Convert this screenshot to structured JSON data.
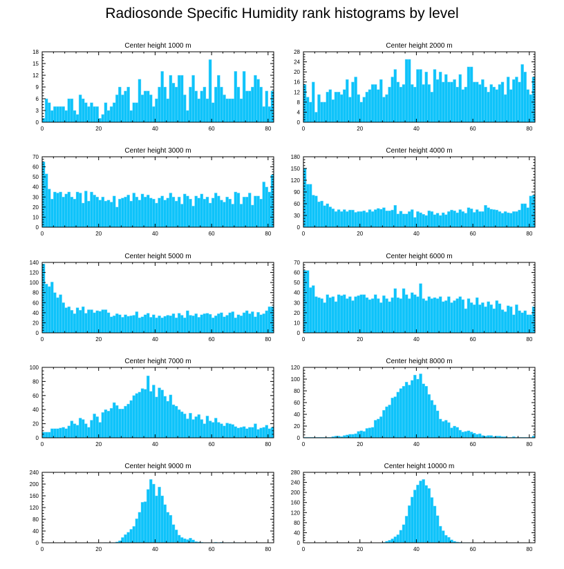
{
  "title": "Radiosonde Specific Humidity rank histograms by level",
  "colors": {
    "bar": "#0EC3FA",
    "bar_edge": "#7FDCFC",
    "axis": "#000000"
  },
  "chart_data": [
    {
      "type": "bar",
      "title": "Center height 1000 m",
      "xlim": [
        0,
        82
      ],
      "ylim": [
        0,
        18
      ],
      "xticks": [
        0,
        20,
        40,
        60,
        80
      ],
      "yticks": [
        0,
        3,
        6,
        9,
        12,
        15,
        18
      ],
      "x_start": 0,
      "values": [
        1,
        6,
        5,
        3,
        4,
        4,
        4,
        4,
        3,
        6,
        6,
        3,
        2,
        7,
        6,
        5,
        4,
        5,
        4,
        4,
        1,
        2,
        5,
        3,
        4,
        5,
        7,
        9,
        7,
        8,
        9,
        3,
        5,
        5,
        11,
        7,
        8,
        8,
        7,
        4,
        6,
        9,
        13,
        9,
        6,
        12,
        10,
        9,
        12,
        12,
        7,
        3,
        9,
        12,
        8,
        6,
        8,
        9,
        6,
        16,
        5,
        9,
        12,
        9,
        7,
        6,
        6,
        6,
        13,
        9,
        6,
        13,
        8,
        8,
        9,
        12,
        11,
        9,
        4,
        8,
        4,
        8
      ]
    },
    {
      "type": "bar",
      "title": "Center height 2000 m",
      "xlim": [
        0,
        82
      ],
      "ylim": [
        0,
        28
      ],
      "xticks": [
        0,
        20,
        40,
        60,
        80
      ],
      "yticks": [
        0,
        4,
        8,
        12,
        16,
        20,
        24,
        28
      ],
      "x_start": 0,
      "values": [
        15,
        10,
        8,
        16,
        4,
        11,
        8,
        8,
        12,
        13,
        9,
        12,
        12,
        11,
        13,
        17,
        10,
        16,
        18,
        11,
        8,
        10,
        12,
        13,
        15,
        15,
        13,
        17,
        10,
        11,
        14,
        18,
        21,
        16,
        14,
        15,
        25,
        25,
        15,
        14,
        21,
        21,
        15,
        20,
        15,
        12,
        21,
        17,
        20,
        16,
        19,
        16,
        16,
        17,
        14,
        19,
        13,
        14,
        22,
        22,
        16,
        16,
        15,
        17,
        14,
        12,
        15,
        14,
        13,
        15,
        16,
        11,
        18,
        13,
        17,
        18,
        16,
        23,
        20,
        13,
        11,
        18
      ]
    },
    {
      "type": "bar",
      "title": "Center height 3000 m",
      "xlim": [
        0,
        82
      ],
      "ylim": [
        0,
        70
      ],
      "xticks": [
        0,
        20,
        40,
        60,
        80
      ],
      "yticks": [
        0,
        10,
        20,
        30,
        40,
        50,
        60,
        70
      ],
      "x_start": 0,
      "values": [
        65,
        53,
        38,
        28,
        35,
        34,
        35,
        30,
        33,
        35,
        30,
        28,
        35,
        34,
        24,
        36,
        26,
        35,
        32,
        30,
        27,
        30,
        26,
        27,
        25,
        31,
        20,
        28,
        29,
        30,
        32,
        26,
        34,
        30,
        27,
        33,
        30,
        32,
        29,
        28,
        24,
        29,
        31,
        27,
        29,
        34,
        30,
        26,
        30,
        23,
        33,
        31,
        28,
        21,
        31,
        29,
        33,
        28,
        30,
        24,
        29,
        34,
        31,
        27,
        25,
        30,
        28,
        23,
        35,
        34,
        23,
        30,
        30,
        34,
        22,
        31,
        31,
        28,
        45,
        40,
        35,
        52
      ]
    },
    {
      "type": "bar",
      "title": "Center height 4000 m",
      "xlim": [
        0,
        82
      ],
      "ylim": [
        0,
        180
      ],
      "xticks": [
        0,
        20,
        40,
        60,
        80
      ],
      "yticks": [
        0,
        30,
        60,
        90,
        120,
        150,
        180
      ],
      "x_start": 0,
      "values": [
        151,
        110,
        110,
        82,
        80,
        65,
        67,
        55,
        60,
        52,
        47,
        40,
        45,
        40,
        45,
        40,
        44,
        44,
        38,
        40,
        40,
        42,
        38,
        45,
        40,
        45,
        48,
        46,
        50,
        42,
        42,
        44,
        56,
        34,
        41,
        34,
        34,
        40,
        45,
        25,
        40,
        37,
        33,
        30,
        42,
        40,
        32,
        36,
        30,
        37,
        32,
        40,
        44,
        42,
        37,
        45,
        40,
        36,
        50,
        47,
        38,
        45,
        40,
        40,
        56,
        50,
        46,
        45,
        44,
        40,
        36,
        40,
        37,
        36,
        40,
        40,
        44,
        60,
        60,
        50,
        80,
        82
      ]
    },
    {
      "type": "bar",
      "title": "Center height 5000 m",
      "xlim": [
        0,
        82
      ],
      "ylim": [
        0,
        140
      ],
      "xticks": [
        0,
        20,
        40,
        60,
        80
      ],
      "yticks": [
        0,
        20,
        40,
        60,
        80,
        100,
        120,
        140
      ],
      "x_start": 0,
      "values": [
        137,
        97,
        92,
        101,
        80,
        70,
        76,
        60,
        50,
        52,
        45,
        38,
        50,
        45,
        52,
        39,
        46,
        46,
        40,
        44,
        43,
        46,
        46,
        40,
        32,
        34,
        38,
        36,
        31,
        36,
        33,
        34,
        35,
        42,
        30,
        32,
        36,
        39,
        31,
        36,
        30,
        34,
        30,
        33,
        35,
        34,
        38,
        30,
        39,
        35,
        30,
        44,
        35,
        34,
        38,
        31,
        36,
        38,
        39,
        37,
        30,
        34,
        38,
        40,
        32,
        35,
        40,
        42,
        30,
        36,
        34,
        40,
        44,
        38,
        42,
        32,
        41,
        36,
        38,
        44,
        52,
        52
      ]
    },
    {
      "type": "bar",
      "title": "Center height 6000 m",
      "xlim": [
        0,
        82
      ],
      "ylim": [
        0,
        70
      ],
      "xticks": [
        0,
        20,
        40,
        60,
        80
      ],
      "yticks": [
        0,
        10,
        20,
        30,
        40,
        50,
        60,
        70
      ],
      "x_start": 0,
      "values": [
        62,
        62,
        45,
        47,
        36,
        35,
        34,
        30,
        38,
        35,
        36,
        31,
        38,
        37,
        38,
        34,
        36,
        32,
        36,
        37,
        38,
        38,
        35,
        33,
        34,
        38,
        34,
        30,
        37,
        34,
        31,
        35,
        44,
        35,
        34,
        44,
        38,
        34,
        40,
        38,
        36,
        49,
        34,
        32,
        36,
        34,
        35,
        34,
        36,
        31,
        32,
        36,
        30,
        32,
        34,
        36,
        33,
        24,
        34,
        30,
        28,
        35,
        28,
        30,
        26,
        31,
        28,
        24,
        32,
        29,
        23,
        21,
        27,
        26,
        18,
        28,
        22,
        20,
        22,
        18,
        18,
        26
      ]
    },
    {
      "type": "bar",
      "title": "Center height 7000 m",
      "xlim": [
        0,
        82
      ],
      "ylim": [
        0,
        100
      ],
      "xticks": [
        0,
        20,
        40,
        60,
        80
      ],
      "yticks": [
        0,
        20,
        40,
        60,
        80,
        100
      ],
      "x_start": 0,
      "values": [
        8,
        8,
        8,
        13,
        13,
        13,
        14,
        15,
        13,
        17,
        24,
        20,
        18,
        28,
        26,
        20,
        15,
        25,
        34,
        30,
        22,
        36,
        40,
        38,
        42,
        50,
        46,
        41,
        41,
        45,
        48,
        53,
        60,
        63,
        65,
        70,
        69,
        88,
        66,
        75,
        58,
        71,
        68,
        59,
        52,
        61,
        47,
        45,
        40,
        37,
        34,
        27,
        35,
        26,
        30,
        33,
        26,
        20,
        31,
        24,
        22,
        28,
        22,
        20,
        17,
        21,
        20,
        19,
        16,
        14,
        15,
        16,
        13,
        15,
        15,
        20,
        12,
        14,
        15,
        18,
        13,
        15
      ]
    },
    {
      "type": "bar",
      "title": "Center height 8000 m",
      "xlim": [
        0,
        82
      ],
      "ylim": [
        0,
        120
      ],
      "xticks": [
        0,
        20,
        40,
        60,
        80
      ],
      "yticks": [
        0,
        20,
        40,
        60,
        80,
        100,
        120
      ],
      "x_start": 0,
      "values": [
        1,
        1,
        1,
        1,
        1,
        1,
        1,
        1,
        1,
        1,
        2,
        3,
        3,
        2,
        4,
        5,
        6,
        6,
        7,
        11,
        12,
        11,
        16,
        17,
        18,
        30,
        32,
        36,
        47,
        53,
        56,
        68,
        70,
        78,
        84,
        88,
        95,
        90,
        98,
        107,
        100,
        109,
        92,
        88,
        74,
        64,
        56,
        46,
        32,
        28,
        30,
        26,
        17,
        20,
        18,
        13,
        10,
        11,
        12,
        10,
        8,
        6,
        7,
        4,
        3,
        4,
        4,
        2,
        3,
        3,
        2,
        2,
        1,
        1,
        2,
        1,
        1,
        1,
        1,
        1,
        1,
        3
      ]
    },
    {
      "type": "bar",
      "title": "Center height 9000 m",
      "xlim": [
        0,
        82
      ],
      "ylim": [
        0,
        240
      ],
      "xticks": [
        0,
        20,
        40,
        60,
        80
      ],
      "yticks": [
        0,
        40,
        80,
        120,
        160,
        200,
        240
      ],
      "x_start": 0,
      "values": [
        0,
        0,
        0,
        0,
        0,
        0,
        0,
        0,
        0,
        0,
        0,
        0,
        0,
        0,
        0,
        0,
        0,
        0,
        0,
        0,
        0,
        0,
        1,
        0,
        1,
        1,
        3,
        7,
        18,
        28,
        36,
        46,
        56,
        82,
        104,
        138,
        140,
        182,
        216,
        200,
        160,
        190,
        160,
        130,
        104,
        94,
        62,
        44,
        26,
        18,
        14,
        11,
        16,
        10,
        4,
        3,
        2,
        1,
        1,
        1,
        1,
        2,
        1,
        2,
        1,
        1,
        1,
        1,
        1,
        1,
        0,
        0,
        0,
        0,
        0,
        0,
        0,
        0,
        0,
        0,
        0,
        0
      ]
    },
    {
      "type": "bar",
      "title": "Center height 10000 m",
      "xlim": [
        0,
        82
      ],
      "ylim": [
        0,
        280
      ],
      "xticks": [
        0,
        20,
        40,
        60,
        80
      ],
      "yticks": [
        0,
        40,
        80,
        120,
        160,
        200,
        240,
        280
      ],
      "x_start": 0,
      "values": [
        0,
        0,
        0,
        0,
        0,
        0,
        0,
        0,
        0,
        0,
        0,
        0,
        0,
        0,
        0,
        0,
        0,
        0,
        0,
        0,
        0,
        0,
        0,
        0,
        0,
        0,
        0,
        0,
        2,
        6,
        10,
        16,
        24,
        32,
        50,
        72,
        106,
        148,
        182,
        210,
        230,
        246,
        252,
        228,
        216,
        180,
        146,
        108,
        66,
        48,
        30,
        22,
        12,
        6,
        3,
        2,
        1,
        1,
        1,
        0,
        0,
        0,
        0,
        0,
        0,
        0,
        0,
        0,
        0,
        0,
        0,
        0,
        0,
        0,
        0,
        0,
        0,
        0,
        0,
        0,
        0,
        0
      ]
    }
  ]
}
